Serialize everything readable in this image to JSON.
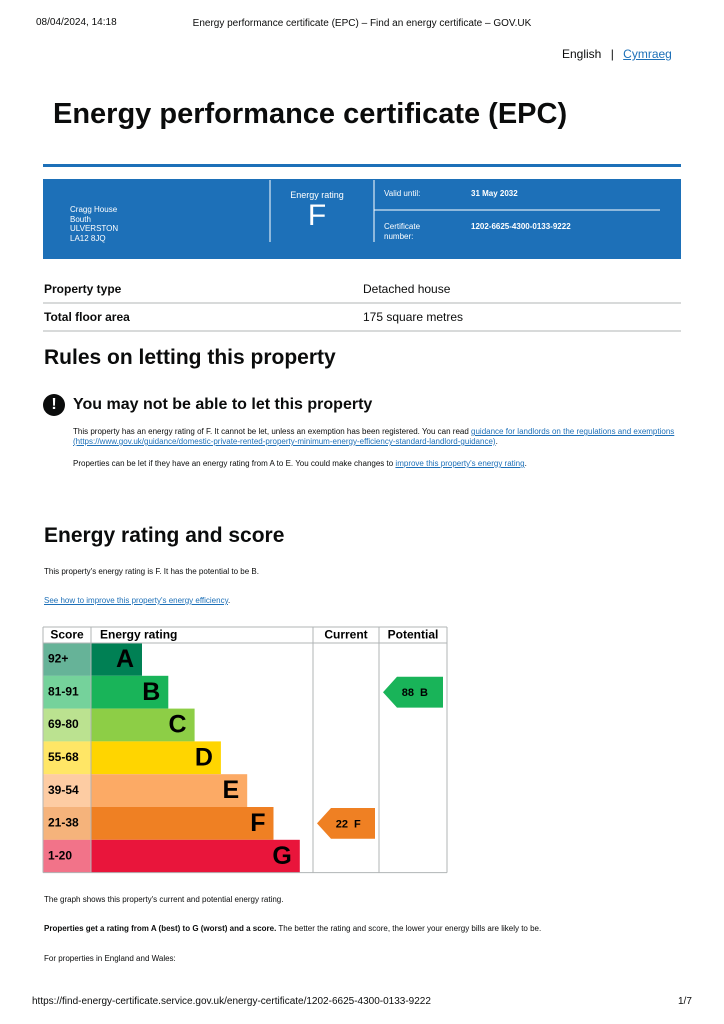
{
  "print_header": {
    "date": "08/04/2024, 14:18",
    "title": "Energy performance certificate (EPC) – Find an energy certificate – GOV.UK"
  },
  "language": {
    "current": "English",
    "separator": "|",
    "other": "Cymraeg"
  },
  "title": "Energy performance certificate (EPC)",
  "summary": {
    "address": [
      "Cragg House",
      "Bouth",
      "ULVERSTON",
      "LA12 8JQ"
    ],
    "rating_label": "Energy rating",
    "rating": "F",
    "valid_until_label": "Valid until:",
    "valid_until": "31 May 2032",
    "certificate_label": "Certificate number:",
    "certificate_number": "1202-6625-4300-0133-9222"
  },
  "property": [
    [
      "Property type",
      "Detached house"
    ],
    [
      "Total floor area",
      "175 square metres"
    ]
  ],
  "letting": {
    "heading": "Rules on letting this property",
    "warning": "You may not be able to let this property",
    "paragraph_1": {
      "text": "This property has an energy rating of F. It cannot be let, unless an exemption has been registered. You can read ",
      "link": "guidance for landlords on the regulations and exemptions (https://www.gov.uk/guidance/domestic-private-rented-property-minimum-energy-efficiency-standard-landlord-guidance)",
      "end": "."
    },
    "paragraph_2": {
      "text": "Properties can be let if they have an energy rating from A to E. You could make changes to ",
      "link": "improve this property's energy rating",
      "end": "."
    }
  },
  "energy": {
    "heading": "Energy rating and score",
    "intro": "This property's energy rating is F. It has the potential to be B.",
    "link": "See how to improve this property's energy efficiency",
    "link_end": ".",
    "chart": {
      "headers": [
        "Score",
        "Energy rating",
        "Current",
        "Potential"
      ],
      "bands": [
        {
          "score": "92+",
          "letter": "A",
          "color": "#008054"
        },
        {
          "score": "81-91",
          "letter": "B",
          "color": "#19b459"
        },
        {
          "score": "69-80",
          "letter": "C",
          "color": "#8dce46"
        },
        {
          "score": "55-68",
          "letter": "D",
          "color": "#ffd500"
        },
        {
          "score": "39-54",
          "letter": "E",
          "color": "#fcaa65"
        },
        {
          "score": "21-38",
          "letter": "F",
          "color": "#ef8023"
        },
        {
          "score": "1-20",
          "letter": "G",
          "color": "#e9153b"
        }
      ],
      "current": {
        "score": 22,
        "letter": "F"
      },
      "potential": {
        "score": 88,
        "letter": "B"
      }
    },
    "note": "The graph shows this property's current and potential energy rating.",
    "rating_bold": "Properties get a rating from A (best) to G (worst) and a score.",
    "rating_rest": " The better the rating and score, the lower your energy bills are likely to be.",
    "regions": "For properties in England and Wales:"
  },
  "print_footer": {
    "url": "https://find-energy-certificate.service.gov.uk/energy-certificate/1202-6625-4300-0133-9222",
    "page": "1/7"
  }
}
